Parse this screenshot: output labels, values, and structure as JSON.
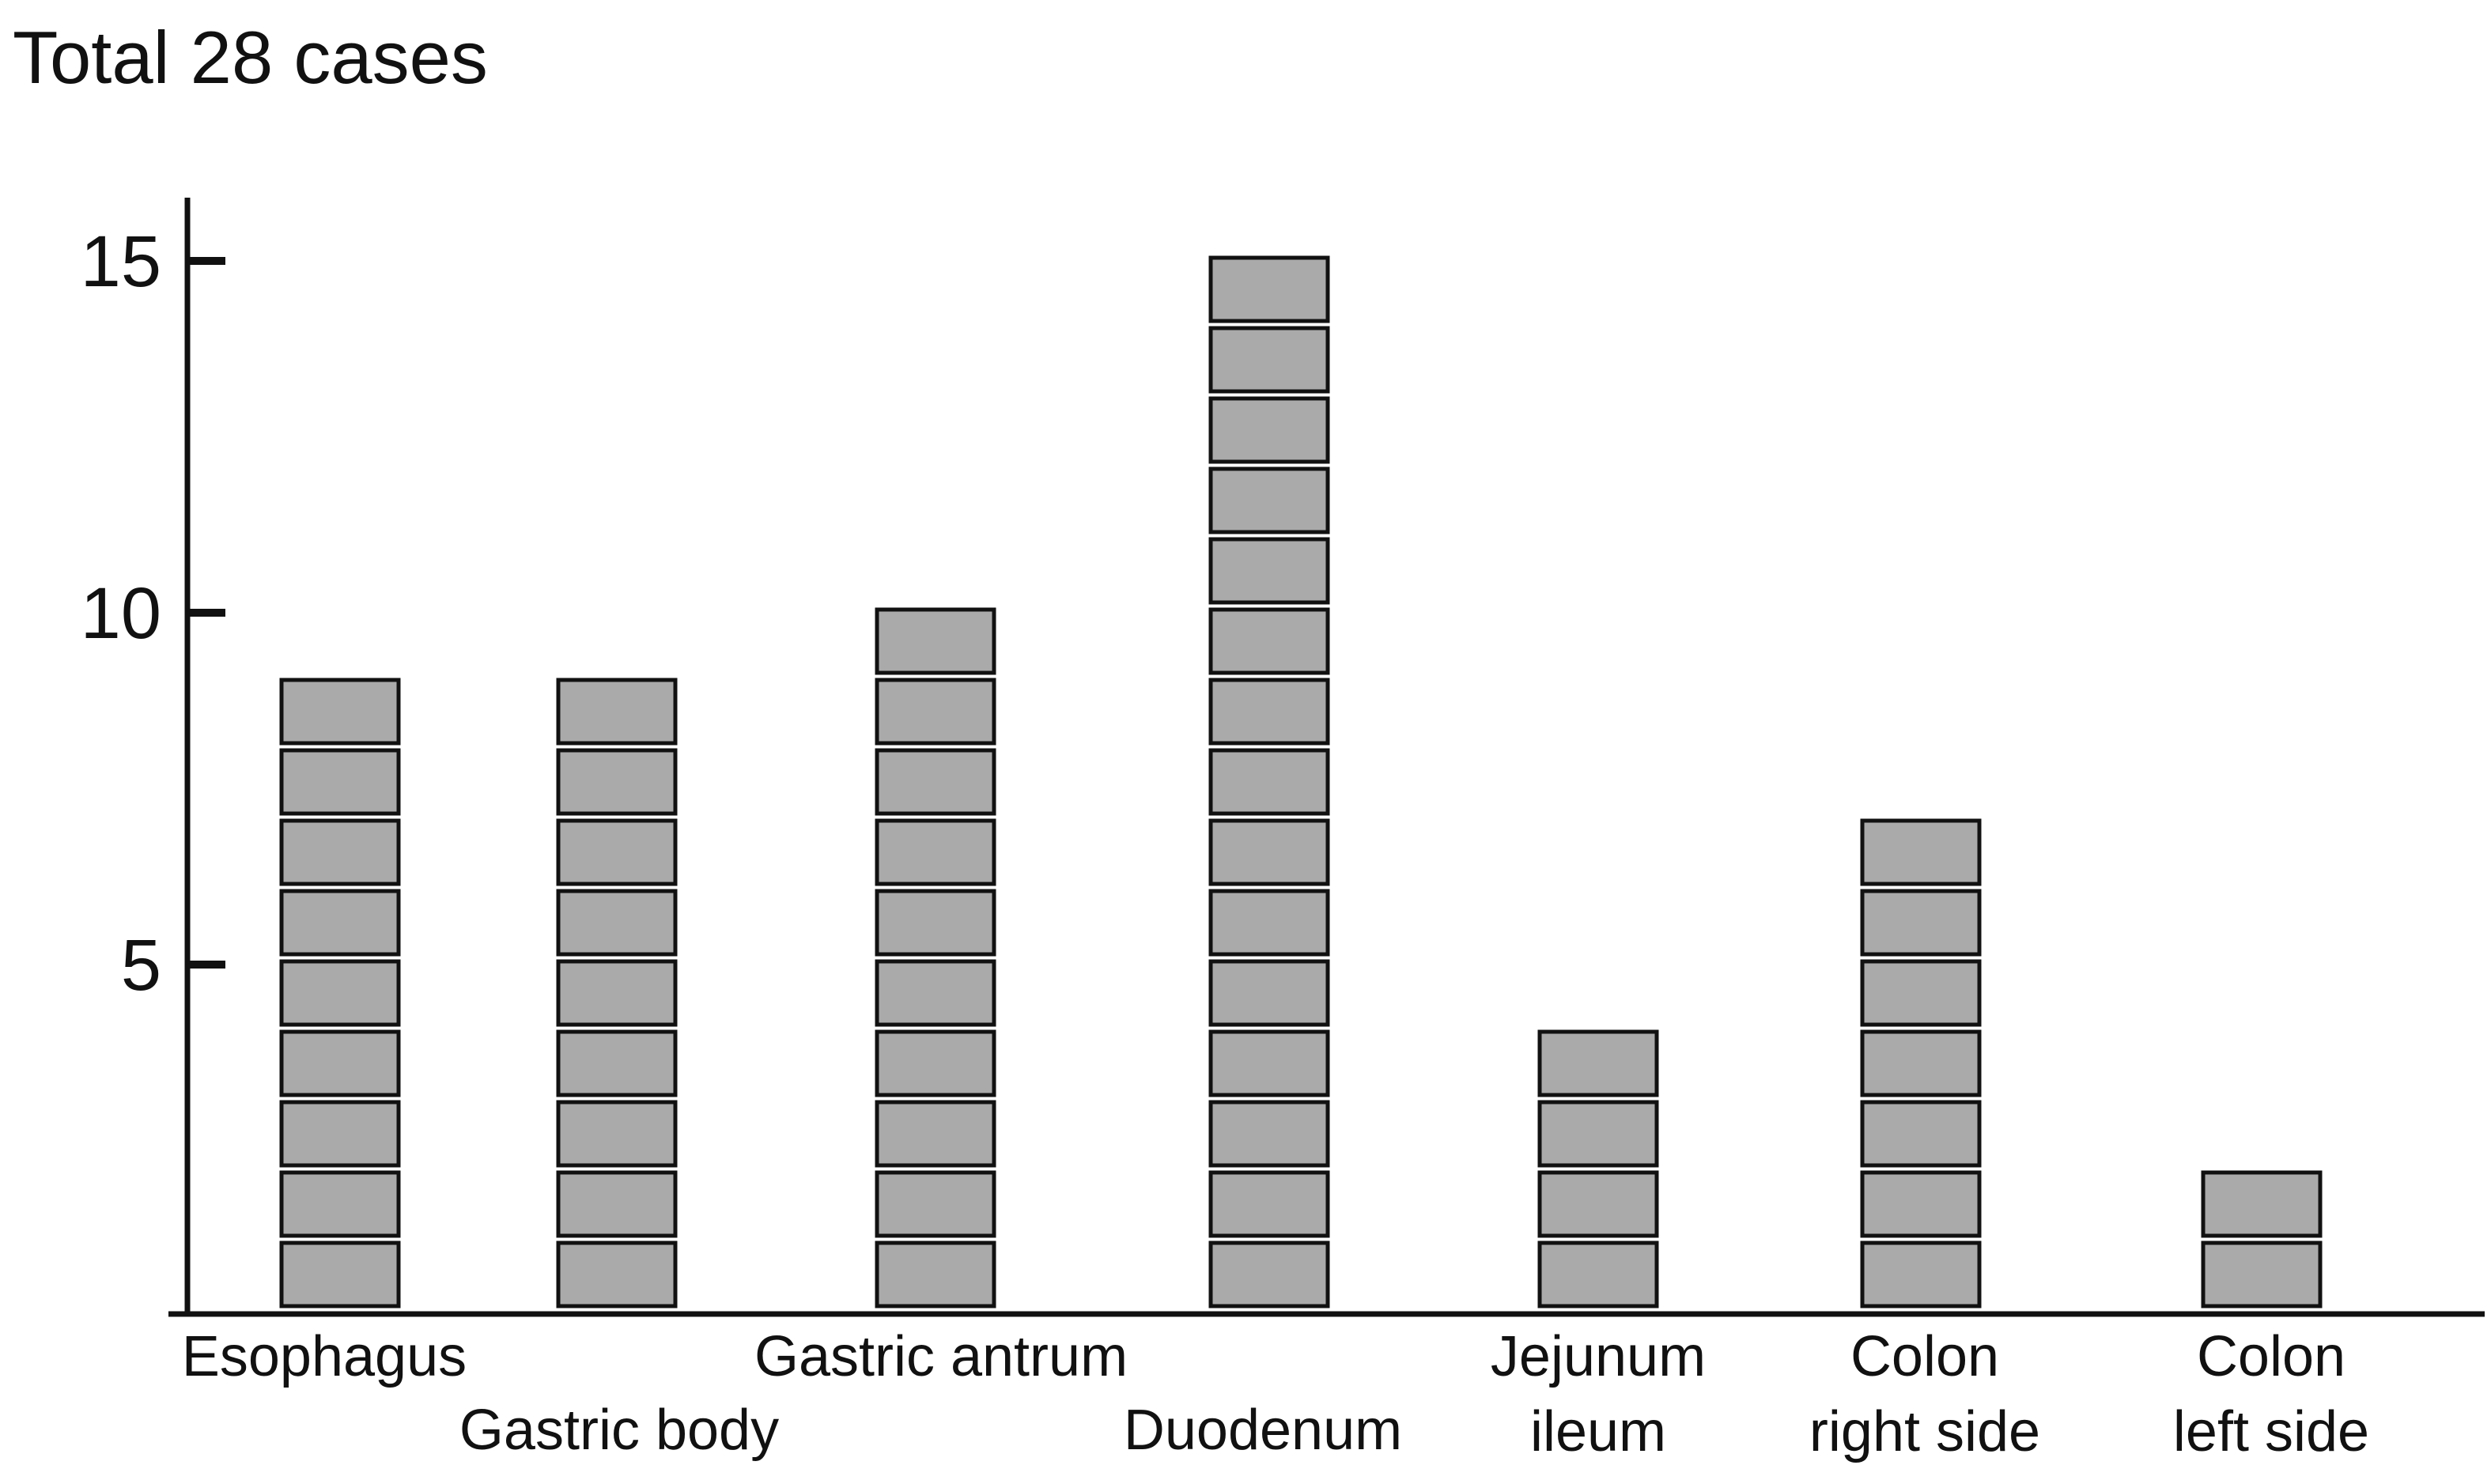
{
  "chart_data": {
    "type": "bar",
    "title": "Total 28 cases",
    "xlabel": "",
    "ylabel": "",
    "ylim": [
      0,
      16
    ],
    "yticks": [
      5,
      10,
      15
    ],
    "grid": false,
    "legend": "none",
    "categories": [
      [
        "Esophagus"
      ],
      [
        "Gastric body"
      ],
      [
        "Gastric antrum"
      ],
      [
        "Duodenum"
      ],
      [
        "Jejunum",
        "ileum"
      ],
      [
        "Colon",
        "right side"
      ],
      [
        "Colon",
        "left side"
      ]
    ],
    "values": [
      9,
      9,
      10,
      15,
      4,
      7,
      2
    ]
  },
  "colors": {
    "block_fill": "#aaaaaa",
    "block_stroke": "#111111",
    "axis": "#111111"
  }
}
